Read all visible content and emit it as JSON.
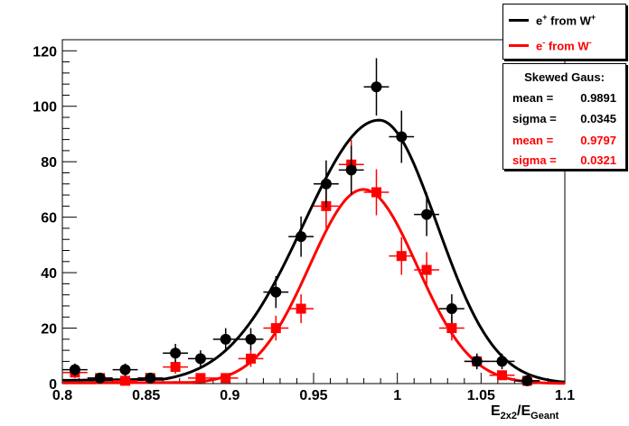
{
  "chart_data": {
    "type": "scatter",
    "xlabel": "E",
    "xlabel_sub1": "2x2",
    "xlabel_sep": "/E",
    "xlabel_sub2": "Geant",
    "xlim": [
      0.8,
      1.1
    ],
    "ylim": [
      0,
      124
    ],
    "x_ticks": [
      "0.8",
      "0.85",
      "0.9",
      "0.95",
      "1",
      "1.05",
      "1.1"
    ],
    "y_ticks": [
      "0",
      "20",
      "40",
      "60",
      "80",
      "100",
      "120"
    ],
    "bin_half_width": 0.0075,
    "series": [
      {
        "name": "from W",
        "color": "#000000",
        "marker": "circle",
        "x": [
          0.8075,
          0.8225,
          0.8375,
          0.8525,
          0.8675,
          0.8825,
          0.8975,
          0.9125,
          0.9275,
          0.9425,
          0.9575,
          0.9725,
          0.9875,
          1.0025,
          1.0175,
          1.0325,
          1.0475,
          1.0625,
          1.0775
        ],
        "y": [
          5,
          2,
          5,
          2,
          11,
          9,
          16,
          16,
          33,
          53,
          72,
          77,
          107,
          89,
          61,
          27,
          8,
          8,
          1
        ],
        "fit": {
          "amplitude": 95,
          "mean": 0.9891,
          "sigma_left": 0.045,
          "sigma_right": 0.0345,
          "tail_amplitude": 3,
          "tail_sigma": 0.1
        }
      },
      {
        "name": "from W",
        "color": "#ff0000",
        "marker": "square",
        "x": [
          0.8075,
          0.8225,
          0.8375,
          0.8525,
          0.8675,
          0.8825,
          0.8975,
          0.9125,
          0.9275,
          0.9425,
          0.9575,
          0.9725,
          0.9875,
          1.0025,
          1.0175,
          1.0325,
          1.0475,
          1.0625,
          1.0775
        ],
        "y": [
          4,
          2,
          1,
          2,
          6,
          2,
          2,
          9,
          20,
          27,
          64,
          79,
          69,
          46,
          41,
          20,
          8,
          3,
          1
        ],
        "fit": {
          "amplitude": 70,
          "mean": 0.9797,
          "sigma_left": 0.0321,
          "sigma_right": 0.0321,
          "tail_amplitude": 1,
          "tail_sigma": 0.06
        }
      }
    ],
    "legend": [
      {
        "prefix": "e",
        "charge": "+",
        "text": " from W",
        "boson_charge": "+",
        "color": "#000000"
      },
      {
        "prefix": "e",
        "charge": "-",
        "text": " from W",
        "boson_charge": "-",
        "color": "#ff0000"
      }
    ],
    "stats": {
      "title": "Skewed Gaus:",
      "rows": [
        {
          "name": "mean =",
          "value": "0.9891",
          "color": "#000000"
        },
        {
          "name": "sigma =",
          "value": "0.0345",
          "color": "#000000"
        },
        {
          "name": "mean =",
          "value": "0.9797",
          "color": "#ff0000"
        },
        {
          "name": "sigma =",
          "value": "0.0321",
          "color": "#ff0000"
        }
      ]
    }
  }
}
